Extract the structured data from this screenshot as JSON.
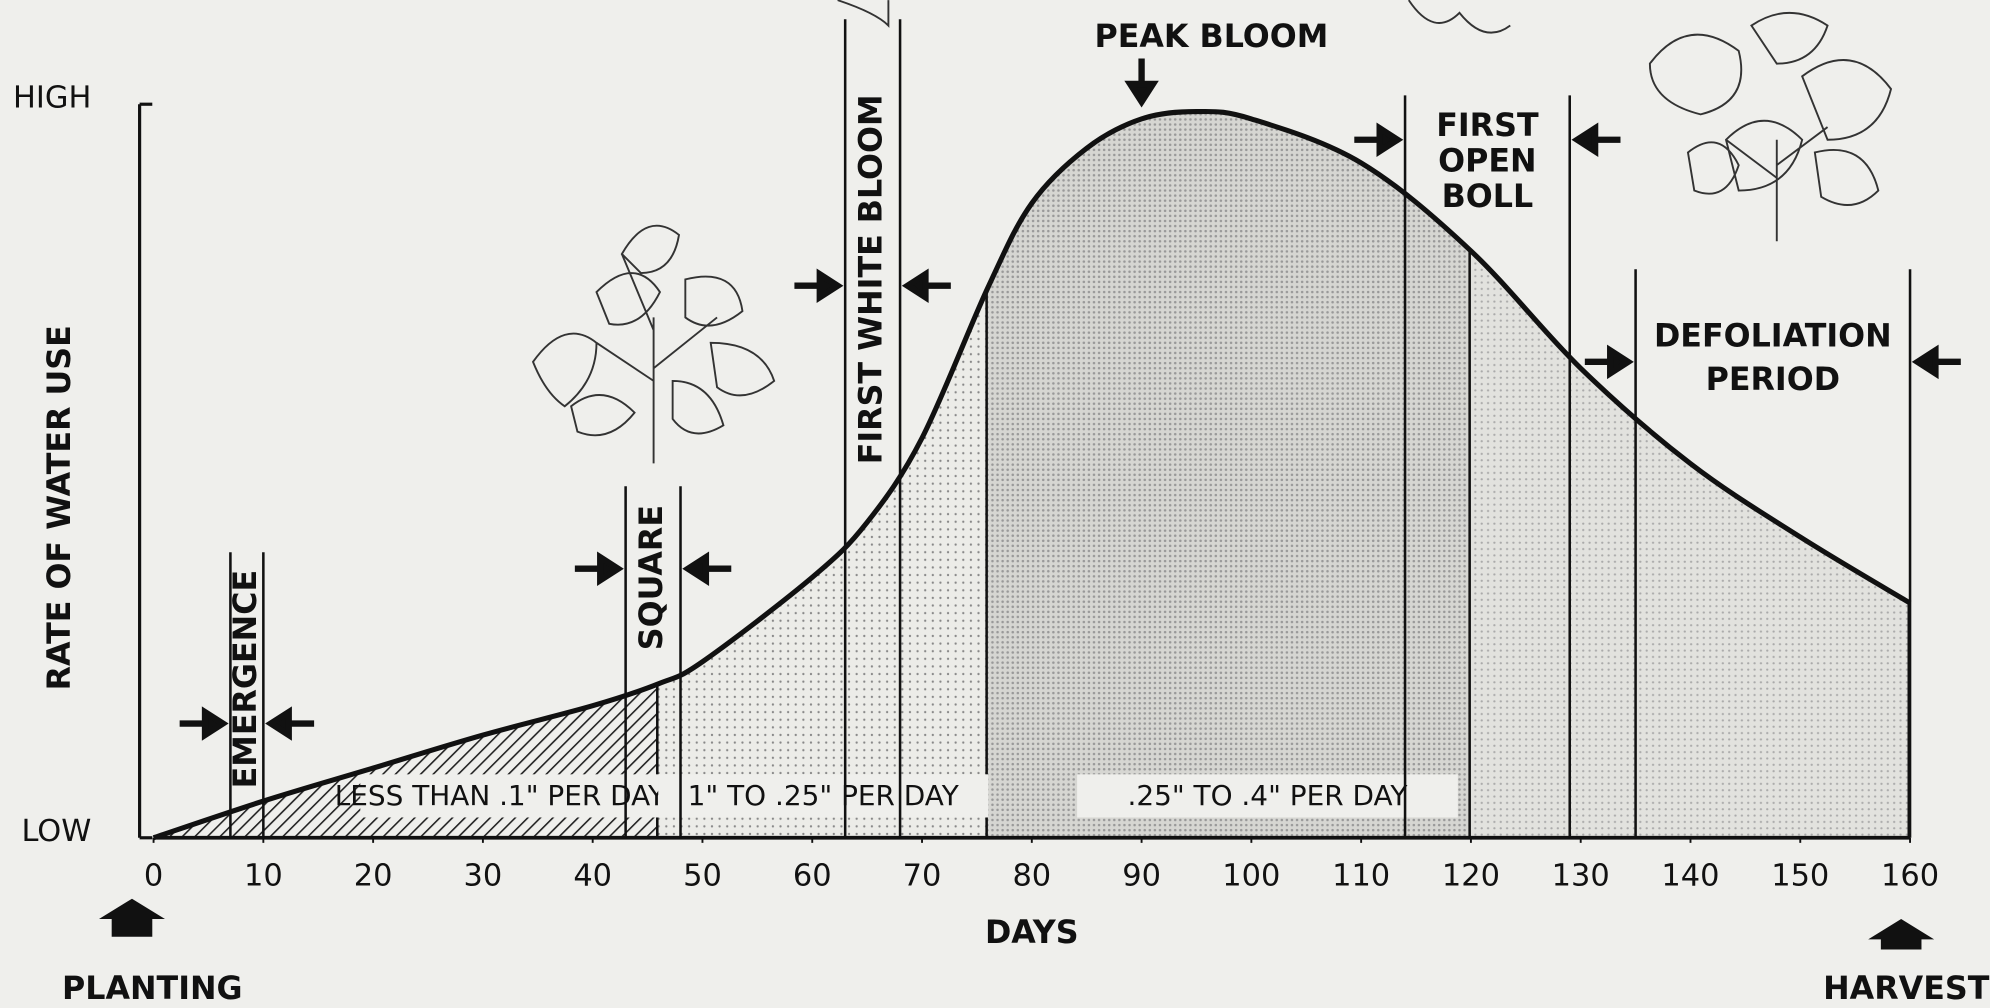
{
  "chart_data": {
    "type": "line",
    "x_label": "DAYS",
    "y_label": "RATE OF WATER USE",
    "x": [
      0,
      10,
      20,
      30,
      40,
      46,
      50,
      60,
      65,
      70,
      76,
      80,
      85,
      90,
      95,
      100,
      110,
      120,
      130,
      140,
      150,
      160
    ],
    "values": [
      0,
      0.05,
      0.095,
      0.14,
      0.18,
      0.21,
      0.24,
      0.355,
      0.43,
      0.545,
      0.75,
      0.865,
      0.94,
      0.98,
      0.99,
      0.98,
      0.92,
      0.8,
      0.64,
      0.51,
      0.41,
      0.32
    ],
    "color": "#111111",
    "xlim": [
      0,
      160
    ],
    "xticks": [
      0,
      10,
      20,
      30,
      40,
      50,
      60,
      70,
      80,
      90,
      100,
      110,
      120,
      130,
      140,
      150,
      160
    ],
    "ylim": [
      0,
      1
    ],
    "yticks": [
      {
        "value": 0,
        "label": "LOW"
      },
      {
        "value": 1,
        "label": "HIGH"
      }
    ],
    "regions": [
      {
        "start": 0,
        "end": 46,
        "label": "LESS THAN .1\" PER DAY"
      },
      {
        "start": 46,
        "end": 76,
        "label": "1\" TO .25\" PER DAY"
      },
      {
        "start": 76,
        "end": 120,
        "label": ".25\" TO .4\" PER DAY"
      },
      {
        "start": 120,
        "end": 160
      }
    ],
    "stages": [
      {
        "label": [
          "EMERGENCE"
        ],
        "start": 7,
        "end": 10
      },
      {
        "label": [
          "SQUARE"
        ],
        "start": 43,
        "end": 48
      },
      {
        "label": [
          "FIRST WHITE BLOOM"
        ],
        "start": 63,
        "end": 68
      },
      {
        "label": [
          "FIRST",
          "OPEN",
          "BOLL"
        ],
        "start": 114,
        "end": 129
      },
      {
        "label": [
          "DEFOLIATION",
          "PERIOD"
        ],
        "start": 135,
        "end": 160
      }
    ],
    "peak": {
      "label": "PEAK BLOOM",
      "x": 90
    },
    "start_label": "PLANTING",
    "end_label": "HARVEST"
  }
}
